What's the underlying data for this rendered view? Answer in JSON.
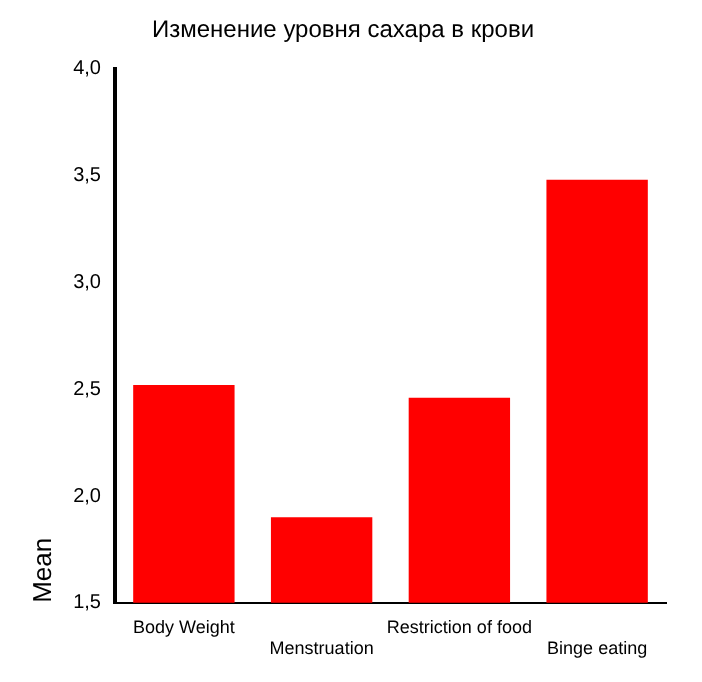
{
  "chart_data": {
    "type": "bar",
    "title": "Изменение уровня сахара в крови",
    "ylabel": "Mean",
    "categories": [
      "Body Weight",
      "Menstruation",
      "Restriction of food",
      "Binge eating"
    ],
    "values": [
      2.52,
      1.9,
      2.46,
      3.48
    ],
    "color": "#ff0000",
    "ylim": [
      1.5,
      4.0
    ],
    "yticks": [
      {
        "value": 1.5,
        "label": "1,5"
      },
      {
        "value": 2.0,
        "label": "2,0"
      },
      {
        "value": 2.5,
        "label": "2,5"
      },
      {
        "value": 3.0,
        "label": "3,0"
      },
      {
        "value": 3.5,
        "label": "3,5"
      },
      {
        "value": 4.0,
        "label": "4,0"
      }
    ],
    "grid": false,
    "legend": false
  }
}
